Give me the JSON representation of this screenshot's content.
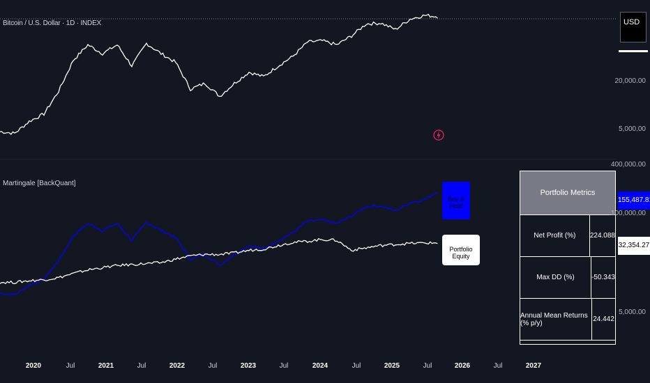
{
  "symbol_title": "Bitcoin / U.S. Dollar · 1D · INDEX",
  "indicator_title": "Martingale [BackQuant]",
  "currency_button": "USD",
  "price_axis": {
    "top_pane_ticks": [
      "20,000.00",
      "5,000.00"
    ],
    "bottom_pane_ticks": [
      "400,000.00",
      "100,000.00",
      "5,000.00"
    ]
  },
  "badges": {
    "buy_hold_value": "155,487.81",
    "equity_value": "32,354.27",
    "buy_hold_color": "#0000ff",
    "equity_color": "#ffffff"
  },
  "tags": {
    "buy_hold_label": "Buy & Hold",
    "equity_label": "Portfolio Equity"
  },
  "metrics_table": {
    "header": "Portfolio Metrics",
    "rows": [
      {
        "label": "Net Profit (%)",
        "value": "224.088"
      },
      {
        "label": "Max DD (%)",
        "value": "-50.343"
      },
      {
        "label": "Annual Mean Returns (% p/y)",
        "value": "24.442"
      }
    ]
  },
  "time_axis": [
    "2020",
    "Jul",
    "2021",
    "Jul",
    "2022",
    "Jul",
    "2023",
    "Jul",
    "2024",
    "Jul",
    "2025",
    "Jul",
    "2026",
    "Jul",
    "2027"
  ],
  "icons": {
    "alert": "lightning-icon"
  },
  "colors": {
    "background": "#131722",
    "price_line": "#ffffff",
    "buy_hold_line": "#0000ff",
    "equity_line": "#ffffff"
  },
  "chart_data": [
    {
      "type": "line",
      "title": "Bitcoin / U.S. Dollar · 1D · INDEX",
      "series": [
        {
          "name": "",
          "values": [
            7200,
            6900,
            9200,
            11000,
            19000,
            40000,
            58000,
            47000,
            58000,
            35000,
            60000,
            47000,
            38000,
            20000,
            23000,
            16800,
            23000,
            30000,
            27000,
            35000,
            44000,
            62000,
            64000,
            58000,
            72000,
            96000,
            98000,
            84000,
            108000,
            118000,
            114000
          ]
        }
      ],
      "scale": "log"
    },
    {
      "type": "line",
      "title": "Martingale [BackQuant]",
      "series": [
        {
          "name": "Buy & Hold",
          "values": [
            7200,
            6900,
            9200,
            11000,
            19000,
            40000,
            58000,
            47000,
            58000,
            35000,
            60000,
            47000,
            38000,
            20000,
            23000,
            16800,
            23000,
            30000,
            27000,
            35000,
            44000,
            62000,
            64000,
            58000,
            72000,
            96000,
            98000,
            84000,
            108000,
            118000,
            155487.81
          ]
        },
        {
          "name": "Portfolio Equity",
          "values": [
            10000,
            10000,
            10500,
            10800,
            11500,
            13000,
            14500,
            15500,
            16500,
            17000,
            17500,
            18000,
            20000,
            22000,
            23000,
            23000,
            24000,
            26000,
            27000,
            30000,
            33000,
            34000,
            36000,
            35000,
            26000,
            28000,
            30000,
            31000,
            32000,
            32354.27,
            32354.27
          ]
        }
      ],
      "scale": "log"
    }
  ]
}
